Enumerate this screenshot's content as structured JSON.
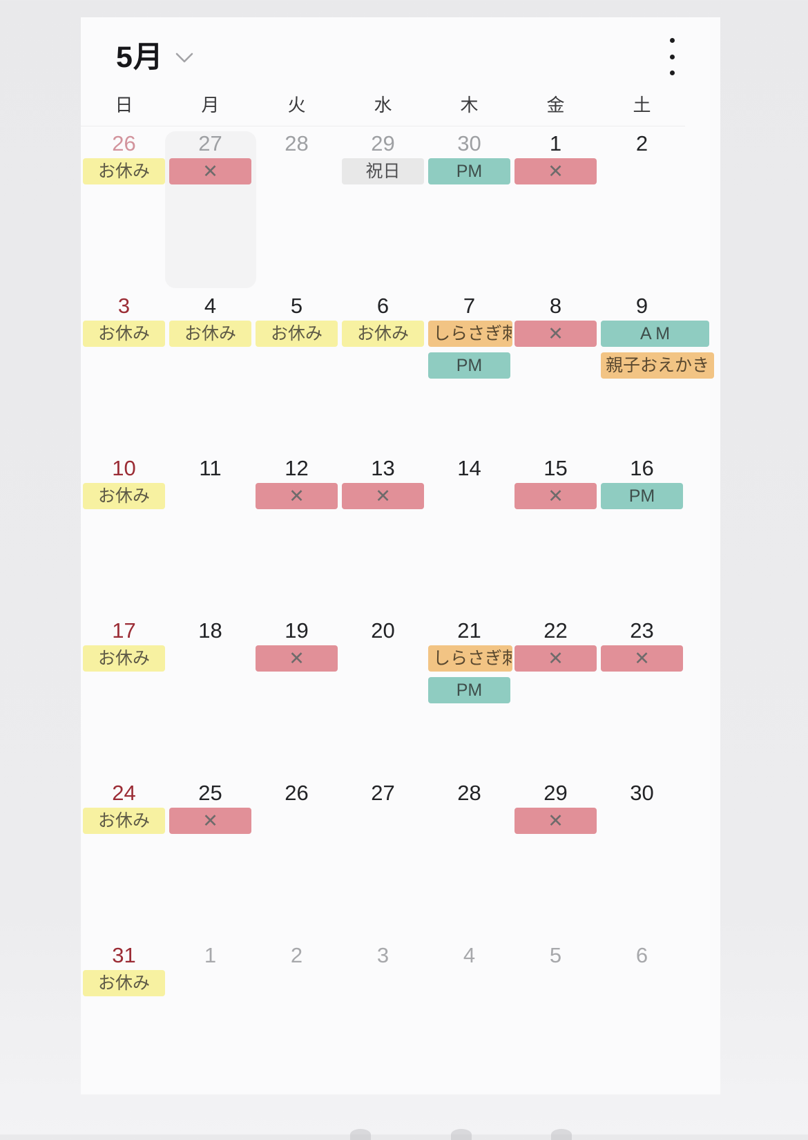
{
  "header": {
    "month_label": "5月"
  },
  "weekday_headers": [
    "日",
    "月",
    "火",
    "水",
    "木",
    "金",
    "土"
  ],
  "number_colors": {
    "current": "#222326",
    "sunday": "#9B2C35",
    "prev": "#9EA0A3",
    "prev_sunday": "#D2939C",
    "next": "#A7A8AB"
  },
  "badge_styles": {
    "off": {
      "bg": "#F7F1A1",
      "fg": "#5D5946",
      "meaning": "day off"
    },
    "closed": {
      "bg": "#E19098",
      "fg": "#6E6B6B",
      "meaning": "fully booked / closed"
    },
    "time": {
      "bg": "#8FCCC1",
      "fg": "#3F4E4B",
      "meaning": "AM or PM availability"
    },
    "event": {
      "bg": "#F2C484",
      "fg": "#59482F",
      "meaning": "workshop event"
    },
    "holiday": {
      "bg": "#E8E8E8",
      "fg": "#505052",
      "meaning": "national holiday"
    }
  },
  "weeks": [
    {
      "days": [
        {
          "num": "26",
          "tone": "prev_sunday",
          "badges": [
            {
              "kind": "off",
              "label": "お休み"
            }
          ]
        },
        {
          "num": "27",
          "tone": "prev",
          "selected": true,
          "badges": [
            {
              "kind": "closed",
              "label": "✕"
            }
          ]
        },
        {
          "num": "28",
          "tone": "prev",
          "badges": []
        },
        {
          "num": "29",
          "tone": "prev",
          "badges": [
            {
              "kind": "holiday",
              "label": "祝日"
            }
          ]
        },
        {
          "num": "30",
          "tone": "prev",
          "badges": [
            {
              "kind": "time",
              "label": "PM"
            }
          ]
        },
        {
          "num": "1",
          "tone": "current",
          "badges": [
            {
              "kind": "closed",
              "label": "✕"
            }
          ]
        },
        {
          "num": "2",
          "tone": "current",
          "badges": []
        }
      ]
    },
    {
      "days": [
        {
          "num": "3",
          "tone": "sunday",
          "badges": [
            {
              "kind": "off",
              "label": "お休み"
            }
          ]
        },
        {
          "num": "4",
          "tone": "current",
          "badges": [
            {
              "kind": "off",
              "label": "お休み"
            }
          ]
        },
        {
          "num": "5",
          "tone": "current",
          "badges": [
            {
              "kind": "off",
              "label": "お休み"
            }
          ]
        },
        {
          "num": "6",
          "tone": "current",
          "badges": [
            {
              "kind": "off",
              "label": "お休み"
            }
          ]
        },
        {
          "num": "7",
          "tone": "current",
          "badges": [
            {
              "kind": "event",
              "label": "しらさぎ刺繍"
            },
            {
              "kind": "time",
              "label": "PM"
            }
          ]
        },
        {
          "num": "8",
          "tone": "current",
          "badges": [
            {
              "kind": "closed",
              "label": "✕"
            }
          ]
        },
        {
          "num": "9",
          "tone": "current",
          "badges": [
            {
              "kind": "time",
              "label": "A M",
              "wide": true
            },
            {
              "kind": "event",
              "label": "親子おえかき",
              "wide": true
            }
          ]
        }
      ]
    },
    {
      "days": [
        {
          "num": "10",
          "tone": "sunday",
          "badges": [
            {
              "kind": "off",
              "label": "お休み"
            }
          ]
        },
        {
          "num": "11",
          "tone": "current",
          "badges": []
        },
        {
          "num": "12",
          "tone": "current",
          "badges": [
            {
              "kind": "closed",
              "label": "✕"
            }
          ]
        },
        {
          "num": "13",
          "tone": "current",
          "badges": [
            {
              "kind": "closed",
              "label": "✕"
            }
          ]
        },
        {
          "num": "14",
          "tone": "current",
          "badges": []
        },
        {
          "num": "15",
          "tone": "current",
          "badges": [
            {
              "kind": "closed",
              "label": "✕"
            }
          ]
        },
        {
          "num": "16",
          "tone": "current",
          "badges": [
            {
              "kind": "time",
              "label": "PM"
            }
          ]
        }
      ]
    },
    {
      "days": [
        {
          "num": "17",
          "tone": "sunday",
          "badges": [
            {
              "kind": "off",
              "label": "お休み"
            }
          ]
        },
        {
          "num": "18",
          "tone": "current",
          "badges": []
        },
        {
          "num": "19",
          "tone": "current",
          "badges": [
            {
              "kind": "closed",
              "label": "✕"
            }
          ]
        },
        {
          "num": "20",
          "tone": "current",
          "badges": []
        },
        {
          "num": "21",
          "tone": "current",
          "badges": [
            {
              "kind": "event",
              "label": "しらさぎ刺繍"
            },
            {
              "kind": "time",
              "label": "PM"
            }
          ]
        },
        {
          "num": "22",
          "tone": "current",
          "badges": [
            {
              "kind": "closed",
              "label": "✕"
            }
          ]
        },
        {
          "num": "23",
          "tone": "current",
          "badges": [
            {
              "kind": "closed",
              "label": "✕"
            }
          ]
        }
      ]
    },
    {
      "days": [
        {
          "num": "24",
          "tone": "sunday",
          "badges": [
            {
              "kind": "off",
              "label": "お休み"
            }
          ]
        },
        {
          "num": "25",
          "tone": "current",
          "badges": [
            {
              "kind": "closed",
              "label": "✕"
            }
          ]
        },
        {
          "num": "26",
          "tone": "current",
          "badges": []
        },
        {
          "num": "27",
          "tone": "current",
          "badges": []
        },
        {
          "num": "28",
          "tone": "current",
          "badges": []
        },
        {
          "num": "29",
          "tone": "current",
          "badges": [
            {
              "kind": "closed",
              "label": "✕"
            }
          ]
        },
        {
          "num": "30",
          "tone": "current",
          "badges": []
        }
      ]
    },
    {
      "days": [
        {
          "num": "31",
          "tone": "sunday",
          "badges": [
            {
              "kind": "off",
              "label": "お休み"
            }
          ]
        },
        {
          "num": "1",
          "tone": "next",
          "badges": []
        },
        {
          "num": "2",
          "tone": "next",
          "badges": []
        },
        {
          "num": "3",
          "tone": "next",
          "badges": []
        },
        {
          "num": "4",
          "tone": "next",
          "badges": []
        },
        {
          "num": "5",
          "tone": "next",
          "badges": []
        },
        {
          "num": "6",
          "tone": "next",
          "badges": []
        }
      ]
    }
  ]
}
